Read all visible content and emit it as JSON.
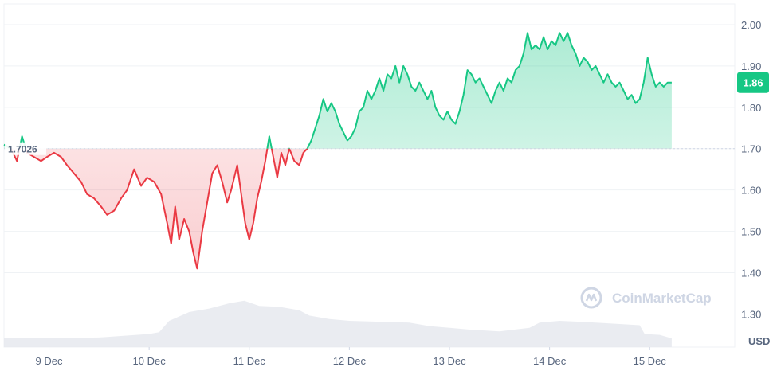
{
  "chart_data": {
    "type": "line",
    "title": "",
    "xlabel": "",
    "ylabel": "",
    "unit_label": "USD",
    "baseline": 1.7,
    "baseline_label": "1.7026",
    "current_price_label": "1.86",
    "ylim": [
      1.22,
      2.05
    ],
    "yticks": [
      {
        "value": 2.0,
        "label": "2.00"
      },
      {
        "value": 1.9,
        "label": "1.90"
      },
      {
        "value": 1.8,
        "label": "1.80"
      },
      {
        "value": 1.7,
        "label": "1.70"
      },
      {
        "value": 1.6,
        "label": "1.60"
      },
      {
        "value": 1.5,
        "label": "1.50"
      },
      {
        "value": 1.4,
        "label": "1.40"
      },
      {
        "value": 1.3,
        "label": "1.30"
      }
    ],
    "xlim": [
      8.55,
      15.85
    ],
    "xticks": [
      {
        "value": 9,
        "label": "9 Dec"
      },
      {
        "value": 10,
        "label": "10 Dec"
      },
      {
        "value": 11,
        "label": "11 Dec"
      },
      {
        "value": 12,
        "label": "12 Dec"
      },
      {
        "value": 13,
        "label": "13 Dec"
      },
      {
        "value": 14,
        "label": "14 Dec"
      },
      {
        "value": 15,
        "label": "15 Dec"
      }
    ],
    "series": [
      {
        "points": [
          [
            8.55,
            1.71
          ],
          [
            8.62,
            1.7
          ],
          [
            8.68,
            1.67
          ],
          [
            8.73,
            1.73
          ],
          [
            8.78,
            1.69
          ],
          [
            8.85,
            1.68
          ],
          [
            8.92,
            1.67
          ],
          [
            8.98,
            1.68
          ],
          [
            9.05,
            1.69
          ],
          [
            9.12,
            1.68
          ],
          [
            9.18,
            1.66
          ],
          [
            9.25,
            1.64
          ],
          [
            9.32,
            1.62
          ],
          [
            9.38,
            1.59
          ],
          [
            9.45,
            1.58
          ],
          [
            9.52,
            1.56
          ],
          [
            9.58,
            1.54
          ],
          [
            9.65,
            1.55
          ],
          [
            9.72,
            1.58
          ],
          [
            9.78,
            1.6
          ],
          [
            9.85,
            1.65
          ],
          [
            9.92,
            1.61
          ],
          [
            9.98,
            1.63
          ],
          [
            10.05,
            1.62
          ],
          [
            10.12,
            1.59
          ],
          [
            10.18,
            1.52
          ],
          [
            10.22,
            1.47
          ],
          [
            10.26,
            1.56
          ],
          [
            10.3,
            1.48
          ],
          [
            10.35,
            1.53
          ],
          [
            10.4,
            1.5
          ],
          [
            10.44,
            1.45
          ],
          [
            10.48,
            1.41
          ],
          [
            10.53,
            1.5
          ],
          [
            10.58,
            1.57
          ],
          [
            10.63,
            1.64
          ],
          [
            10.68,
            1.66
          ],
          [
            10.73,
            1.62
          ],
          [
            10.78,
            1.57
          ],
          [
            10.82,
            1.6
          ],
          [
            10.88,
            1.66
          ],
          [
            10.92,
            1.59
          ],
          [
            10.96,
            1.52
          ],
          [
            11.0,
            1.48
          ],
          [
            11.04,
            1.52
          ],
          [
            11.08,
            1.58
          ],
          [
            11.12,
            1.62
          ],
          [
            11.16,
            1.67
          ],
          [
            11.2,
            1.73
          ],
          [
            11.24,
            1.68
          ],
          [
            11.28,
            1.63
          ],
          [
            11.32,
            1.69
          ],
          [
            11.36,
            1.66
          ],
          [
            11.4,
            1.7
          ],
          [
            11.45,
            1.67
          ],
          [
            11.5,
            1.66
          ],
          [
            11.54,
            1.69
          ],
          [
            11.58,
            1.7
          ],
          [
            11.62,
            1.72
          ],
          [
            11.66,
            1.75
          ],
          [
            11.7,
            1.78
          ],
          [
            11.74,
            1.82
          ],
          [
            11.78,
            1.79
          ],
          [
            11.82,
            1.81
          ],
          [
            11.86,
            1.79
          ],
          [
            11.9,
            1.76
          ],
          [
            11.94,
            1.74
          ],
          [
            11.98,
            1.72
          ],
          [
            12.02,
            1.73
          ],
          [
            12.06,
            1.75
          ],
          [
            12.1,
            1.79
          ],
          [
            12.14,
            1.8
          ],
          [
            12.18,
            1.84
          ],
          [
            12.22,
            1.82
          ],
          [
            12.26,
            1.84
          ],
          [
            12.3,
            1.87
          ],
          [
            12.34,
            1.84
          ],
          [
            12.38,
            1.88
          ],
          [
            12.42,
            1.87
          ],
          [
            12.46,
            1.9
          ],
          [
            12.5,
            1.86
          ],
          [
            12.54,
            1.9
          ],
          [
            12.58,
            1.88
          ],
          [
            12.62,
            1.85
          ],
          [
            12.66,
            1.84
          ],
          [
            12.7,
            1.86
          ],
          [
            12.74,
            1.84
          ],
          [
            12.78,
            1.82
          ],
          [
            12.82,
            1.84
          ],
          [
            12.86,
            1.8
          ],
          [
            12.9,
            1.78
          ],
          [
            12.94,
            1.77
          ],
          [
            12.98,
            1.79
          ],
          [
            13.02,
            1.77
          ],
          [
            13.06,
            1.76
          ],
          [
            13.1,
            1.79
          ],
          [
            13.14,
            1.83
          ],
          [
            13.18,
            1.89
          ],
          [
            13.22,
            1.88
          ],
          [
            13.26,
            1.86
          ],
          [
            13.3,
            1.87
          ],
          [
            13.34,
            1.85
          ],
          [
            13.38,
            1.83
          ],
          [
            13.42,
            1.81
          ],
          [
            13.46,
            1.84
          ],
          [
            13.5,
            1.86
          ],
          [
            13.54,
            1.84
          ],
          [
            13.58,
            1.87
          ],
          [
            13.62,
            1.86
          ],
          [
            13.66,
            1.89
          ],
          [
            13.7,
            1.9
          ],
          [
            13.74,
            1.93
          ],
          [
            13.78,
            1.98
          ],
          [
            13.82,
            1.94
          ],
          [
            13.86,
            1.95
          ],
          [
            13.9,
            1.94
          ],
          [
            13.94,
            1.97
          ],
          [
            13.98,
            1.94
          ],
          [
            14.02,
            1.96
          ],
          [
            14.06,
            1.95
          ],
          [
            14.1,
            1.98
          ],
          [
            14.14,
            1.96
          ],
          [
            14.18,
            1.98
          ],
          [
            14.22,
            1.95
          ],
          [
            14.26,
            1.93
          ],
          [
            14.3,
            1.9
          ],
          [
            14.34,
            1.92
          ],
          [
            14.38,
            1.91
          ],
          [
            14.42,
            1.89
          ],
          [
            14.46,
            1.9
          ],
          [
            14.5,
            1.88
          ],
          [
            14.54,
            1.86
          ],
          [
            14.58,
            1.88
          ],
          [
            14.62,
            1.86
          ],
          [
            14.66,
            1.85
          ],
          [
            14.7,
            1.86
          ],
          [
            14.74,
            1.84
          ],
          [
            14.78,
            1.82
          ],
          [
            14.82,
            1.83
          ],
          [
            14.86,
            1.81
          ],
          [
            14.9,
            1.82
          ],
          [
            14.94,
            1.86
          ],
          [
            14.98,
            1.92
          ],
          [
            15.02,
            1.88
          ],
          [
            15.06,
            1.85
          ],
          [
            15.1,
            1.86
          ],
          [
            15.14,
            1.85
          ],
          [
            15.18,
            1.86
          ],
          [
            15.22,
            1.86
          ]
        ]
      }
    ],
    "volume": [
      [
        8.55,
        0.1
      ],
      [
        9.0,
        0.1
      ],
      [
        9.5,
        0.11
      ],
      [
        10.0,
        0.15
      ],
      [
        10.1,
        0.17
      ],
      [
        10.2,
        0.3
      ],
      [
        10.4,
        0.4
      ],
      [
        10.6,
        0.44
      ],
      [
        10.8,
        0.5
      ],
      [
        10.95,
        0.53
      ],
      [
        11.0,
        0.51
      ],
      [
        11.1,
        0.47
      ],
      [
        11.3,
        0.46
      ],
      [
        11.5,
        0.42
      ],
      [
        11.6,
        0.36
      ],
      [
        11.8,
        0.32
      ],
      [
        12.0,
        0.3
      ],
      [
        12.3,
        0.29
      ],
      [
        12.6,
        0.28
      ],
      [
        12.8,
        0.24
      ],
      [
        13.0,
        0.22
      ],
      [
        13.2,
        0.2
      ],
      [
        13.5,
        0.18
      ],
      [
        13.8,
        0.22
      ],
      [
        13.9,
        0.28
      ],
      [
        14.1,
        0.3
      ],
      [
        14.3,
        0.29
      ],
      [
        14.6,
        0.27
      ],
      [
        14.9,
        0.25
      ],
      [
        14.95,
        0.15
      ],
      [
        15.1,
        0.14
      ],
      [
        15.22,
        0.1
      ]
    ]
  },
  "watermark": {
    "text": "CoinMarketCap",
    "icon": "coinmarketcap-logo-icon"
  },
  "colors": {
    "up_line": "#16c784",
    "down_line": "#ea3943",
    "up_fill": "#16c784",
    "down_fill": "#ea3943",
    "grid": "#eff2f5",
    "baseline": "#cfd6e4",
    "volume": "#e6e9ef",
    "tick_text": "#58667e"
  }
}
